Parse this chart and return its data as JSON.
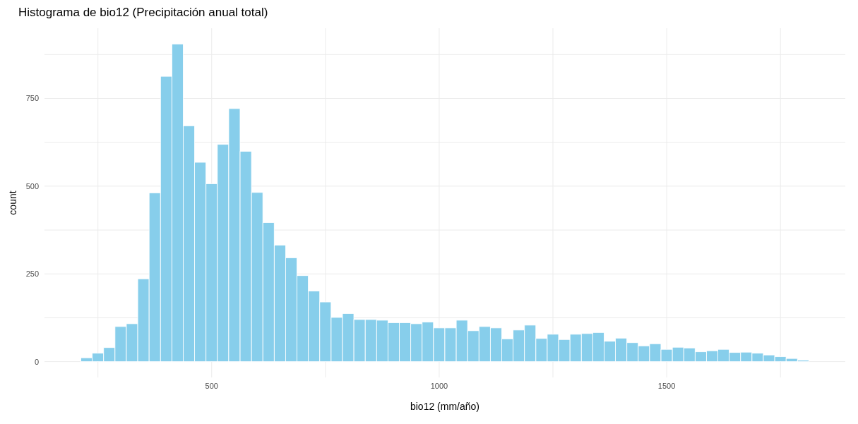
{
  "chart_data": {
    "type": "histogram",
    "title": "Histograma de bio12 (Precipitación anual total)",
    "xlabel": "bio12 (mm/año)",
    "ylabel": "count",
    "color": "#87ceeb",
    "bins": [
      212.5,
      237.5,
      262.5,
      287.5,
      312.5,
      337.5,
      362.5,
      387.5,
      412.5,
      437.5,
      462.5,
      487.5,
      512.5,
      537.5,
      562.5,
      587.5,
      612.5,
      637.5,
      662.5,
      687.5,
      712.5,
      737.5,
      762.5,
      787.5,
      812.5,
      837.5,
      862.5,
      887.5,
      912.5,
      937.5,
      962.5,
      987.5,
      1012.5,
      1037.5,
      1062.5,
      1087.5,
      1112.5,
      1137.5,
      1162.5,
      1187.5,
      1212.5,
      1237.5,
      1262.5,
      1287.5,
      1312.5,
      1337.5,
      1362.5,
      1387.5,
      1412.5,
      1437.5,
      1462.5,
      1487.5,
      1512.5,
      1537.5,
      1562.5,
      1587.5,
      1612.5,
      1637.5,
      1662.5,
      1687.5,
      1712.5,
      1737.5,
      1762.5,
      1787.5,
      1812.5
    ],
    "values": [
      11,
      24,
      40,
      100,
      108,
      236,
      481,
      813,
      905,
      672,
      568,
      507,
      619,
      721,
      599,
      482,
      396,
      332,
      296,
      245,
      201,
      170,
      126,
      137,
      120,
      120,
      118,
      111,
      111,
      108,
      113,
      96,
      96,
      118,
      88,
      100,
      96,
      65,
      90,
      104,
      66,
      78,
      63,
      78,
      80,
      83,
      58,
      67,
      54,
      45,
      51,
      35,
      41,
      39,
      28,
      31,
      35,
      26,
      27,
      24,
      19,
      14,
      9,
      4
    ],
    "xlim": [
      132.5,
      1892.5
    ],
    "xticks": [
      {
        "value": 250,
        "label": null
      },
      500,
      {
        "value": 750,
        "label": null
      },
      1000,
      {
        "value": 1250,
        "label": null
      },
      1500,
      {
        "value": 1750,
        "label": null
      }
    ],
    "ylim": [
      -45,
      950
    ],
    "yticks": [
      0,
      {
        "value": 125,
        "label": null
      },
      250,
      {
        "value": 375,
        "label": null
      },
      500,
      {
        "value": 625,
        "label": null
      },
      750,
      {
        "value": 875,
        "label": null
      }
    ],
    "grid": true
  }
}
